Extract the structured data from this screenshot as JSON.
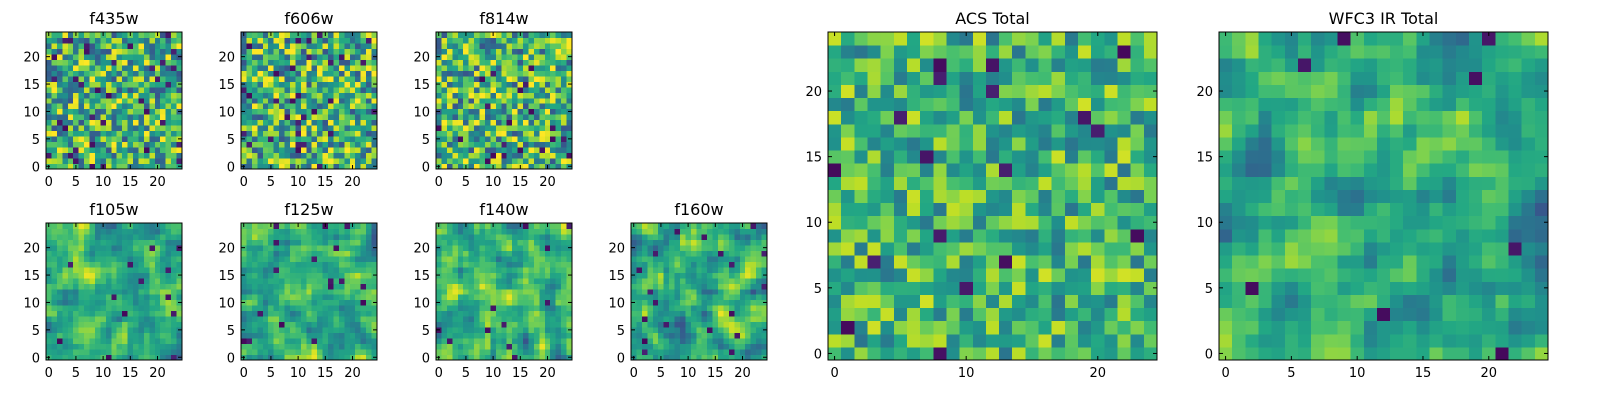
{
  "chart_data": [
    {
      "type": "heatmap",
      "title": "f435w",
      "rows": 25,
      "cols": 25,
      "xticks": [
        0,
        5,
        10,
        15,
        20
      ],
      "yticks": [
        0,
        5,
        10,
        15,
        20
      ],
      "xlim": [
        0,
        24
      ],
      "ylim": [
        0,
        24
      ],
      "colormap": "viridis",
      "seed": 11,
      "smooth": 0,
      "mean": 0.65,
      "spread": 0.24,
      "dark": 0.05
    },
    {
      "type": "heatmap",
      "title": "f606w",
      "rows": 25,
      "cols": 25,
      "xticks": [
        0,
        5,
        10,
        15,
        20
      ],
      "yticks": [
        0,
        5,
        10,
        15,
        20
      ],
      "xlim": [
        0,
        24
      ],
      "ylim": [
        0,
        24
      ],
      "colormap": "viridis",
      "seed": 23,
      "smooth": 0,
      "mean": 0.65,
      "spread": 0.24,
      "dark": 0.05
    },
    {
      "type": "heatmap",
      "title": "f814w",
      "rows": 25,
      "cols": 25,
      "xticks": [
        0,
        5,
        10,
        15,
        20
      ],
      "yticks": [
        0,
        5,
        10,
        15,
        20
      ],
      "xlim": [
        0,
        24
      ],
      "ylim": [
        0,
        24
      ],
      "colormap": "viridis",
      "seed": 37,
      "smooth": 0,
      "mean": 0.65,
      "spread": 0.24,
      "dark": 0.04
    },
    {
      "type": "heatmap",
      "title": "f105w",
      "rows": 25,
      "cols": 25,
      "xticks": [
        0,
        5,
        10,
        15,
        20
      ],
      "yticks": [
        0,
        5,
        10,
        15,
        20
      ],
      "xlim": [
        0,
        24
      ],
      "ylim": [
        0,
        24
      ],
      "colormap": "viridis",
      "seed": 41,
      "smooth": 1,
      "mean": 0.62,
      "spread": 0.22,
      "dark": 0.03
    },
    {
      "type": "heatmap",
      "title": "f125w",
      "rows": 25,
      "cols": 25,
      "xticks": [
        0,
        5,
        10,
        15,
        20
      ],
      "yticks": [
        0,
        5,
        10,
        15,
        20
      ],
      "xlim": [
        0,
        24
      ],
      "ylim": [
        0,
        24
      ],
      "colormap": "viridis",
      "seed": 53,
      "smooth": 1,
      "mean": 0.62,
      "spread": 0.22,
      "dark": 0.03
    },
    {
      "type": "heatmap",
      "title": "f140w",
      "rows": 25,
      "cols": 25,
      "xticks": [
        0,
        5,
        10,
        15,
        20
      ],
      "yticks": [
        0,
        5,
        10,
        15,
        20
      ],
      "xlim": [
        0,
        24
      ],
      "ylim": [
        0,
        24
      ],
      "colormap": "viridis",
      "seed": 67,
      "smooth": 1,
      "mean": 0.62,
      "spread": 0.22,
      "dark": 0.03
    },
    {
      "type": "heatmap",
      "title": "f160w",
      "rows": 25,
      "cols": 25,
      "xticks": [
        0,
        5,
        10,
        15,
        20
      ],
      "yticks": [
        0,
        5,
        10,
        15,
        20
      ],
      "xlim": [
        0,
        24
      ],
      "ylim": [
        0,
        24
      ],
      "colormap": "viridis",
      "seed": 79,
      "smooth": 1,
      "mean": 0.62,
      "spread": 0.22,
      "dark": 0.03
    },
    {
      "type": "heatmap",
      "title": "ACS Total",
      "rows": 25,
      "cols": 25,
      "xticks": [
        0,
        10,
        20
      ],
      "yticks": [
        0,
        5,
        10,
        15,
        20
      ],
      "xlim": [
        0,
        24
      ],
      "ylim": [
        0,
        24
      ],
      "colormap": "viridis",
      "seed": 97,
      "smooth": 0,
      "mean": 0.66,
      "spread": 0.17,
      "dark": 0.025
    },
    {
      "type": "heatmap",
      "title": "WFC3 IR Total",
      "rows": 25,
      "cols": 25,
      "xticks": [
        0,
        5,
        10,
        15,
        20
      ],
      "yticks": [
        0,
        5,
        10,
        15,
        20
      ],
      "xlim": [
        0,
        24
      ],
      "ylim": [
        0,
        24
      ],
      "colormap": "viridis",
      "seed": 113,
      "smooth": 1,
      "mean": 0.58,
      "spread": 0.19,
      "dark": 0.02
    }
  ]
}
